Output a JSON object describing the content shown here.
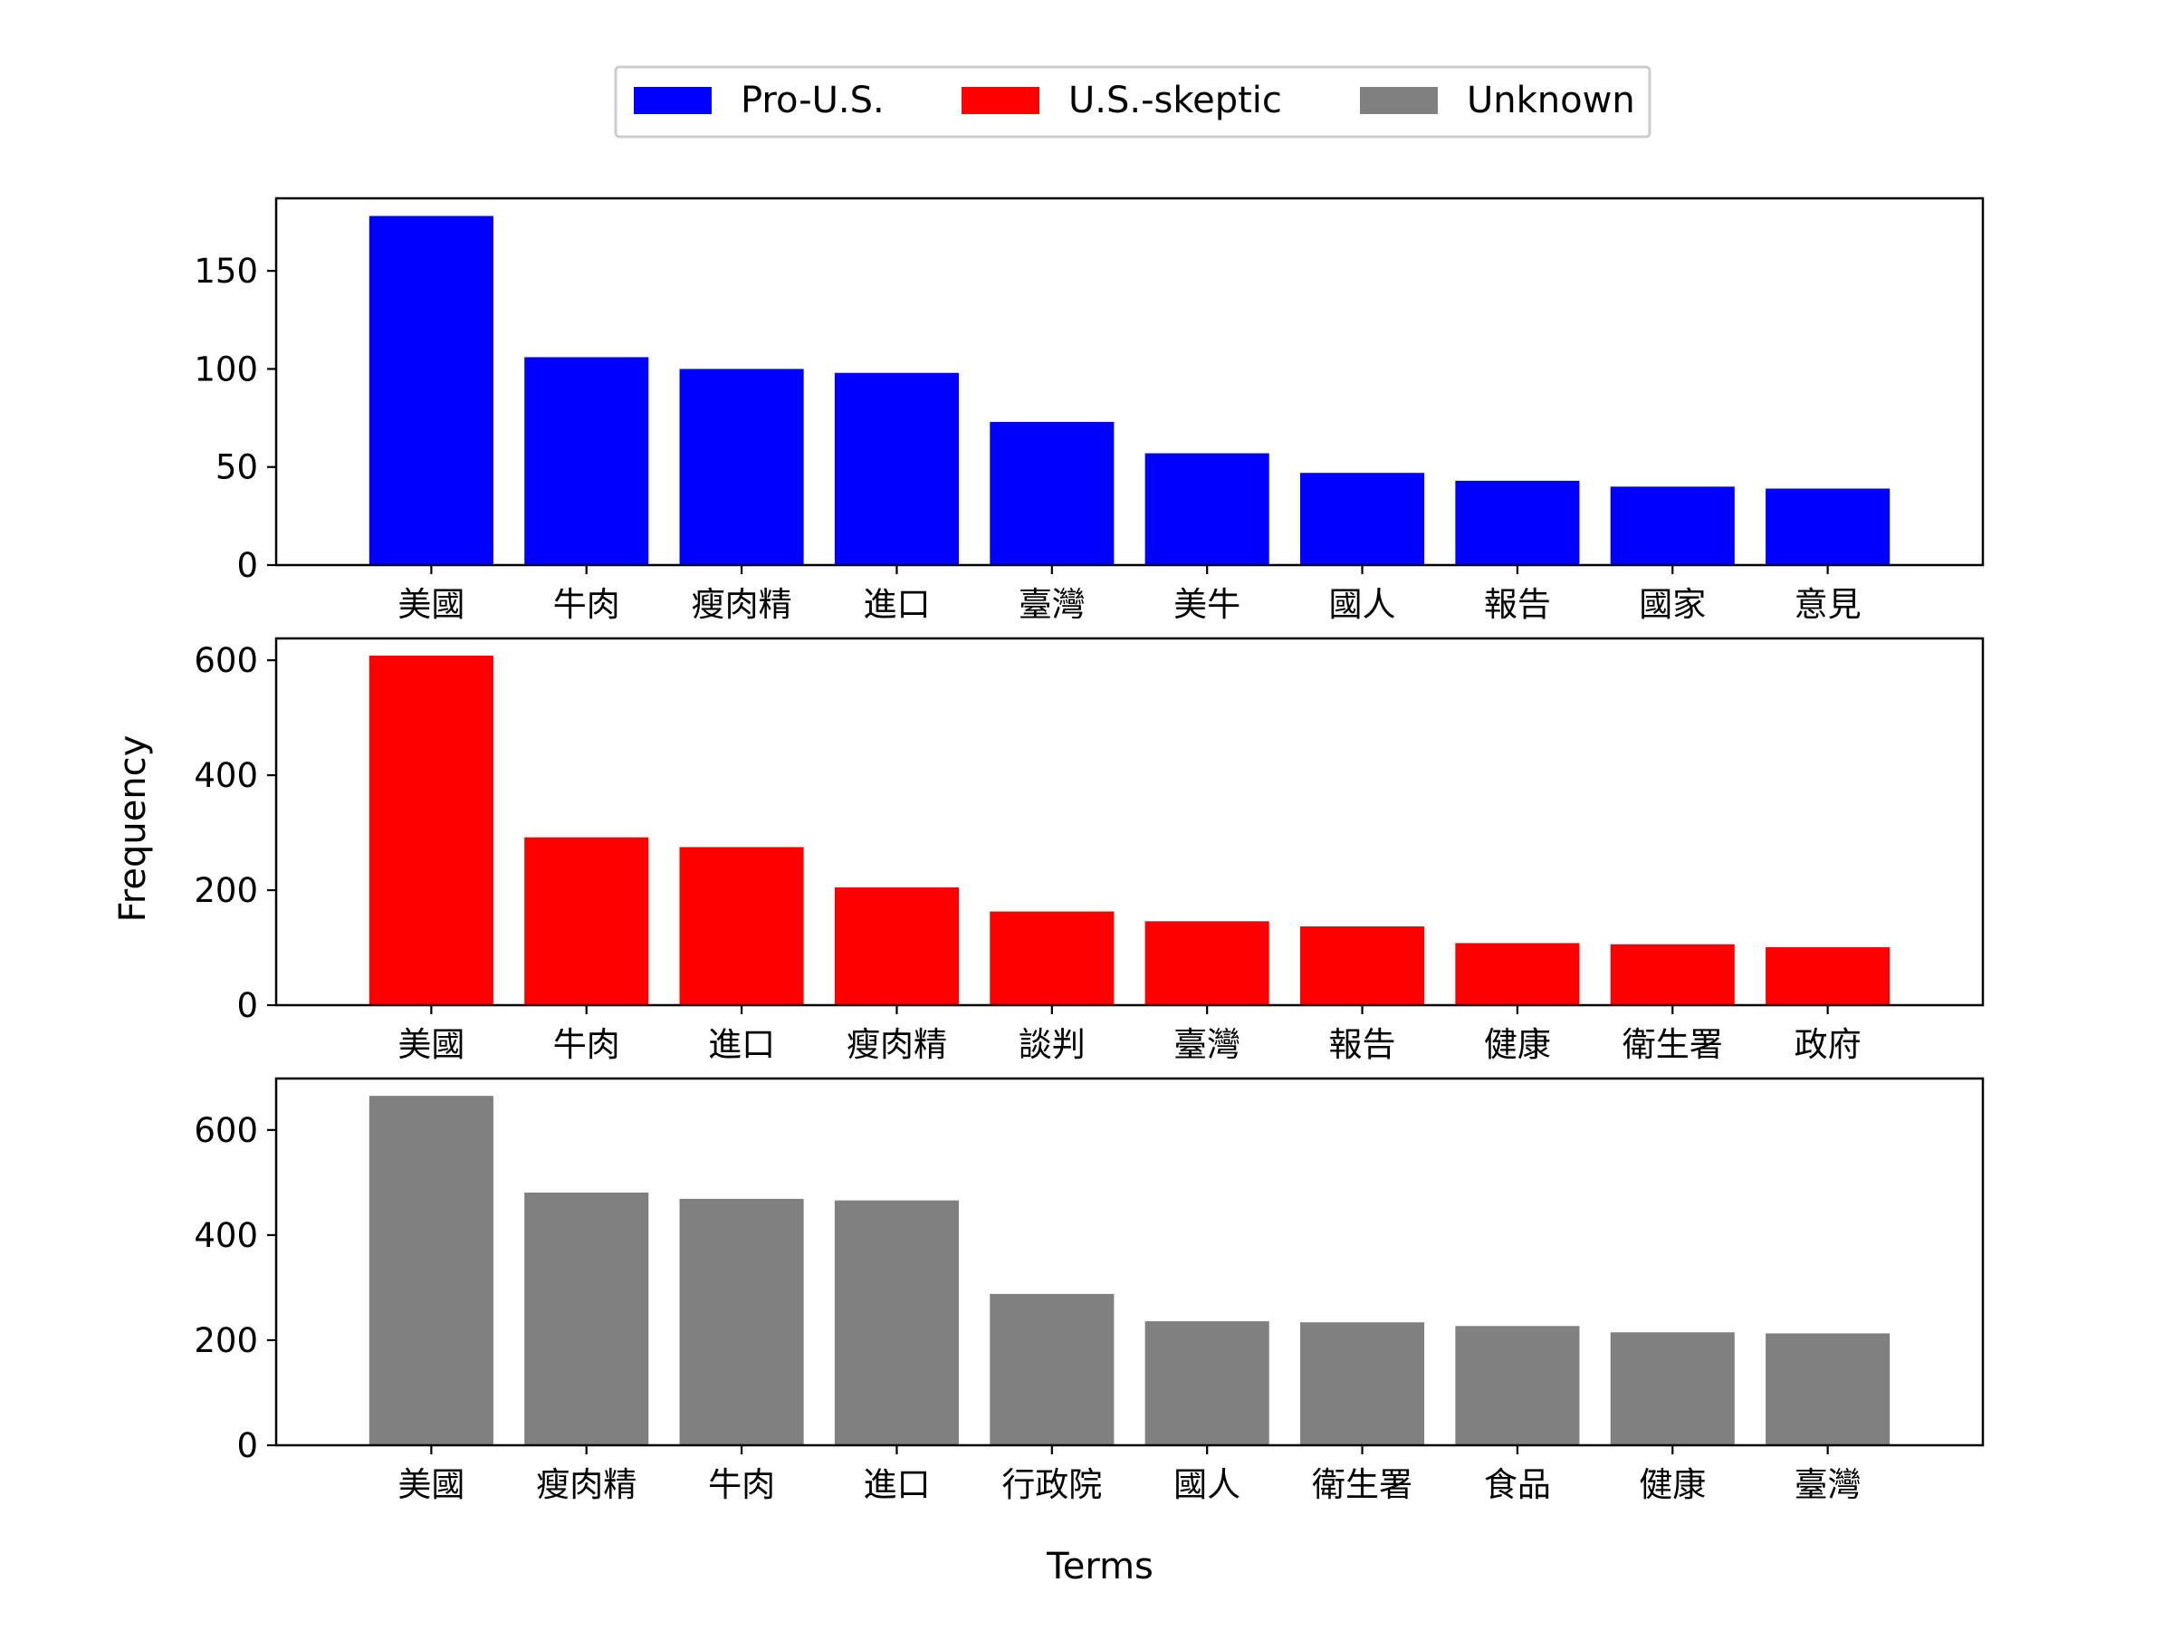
{
  "figure": {
    "ylabel": "Frequency",
    "xlabel": "Terms"
  },
  "legend": {
    "placement": "top-center",
    "entries": [
      {
        "label": "Pro-U.S.",
        "color": "#0000ff"
      },
      {
        "label": "U.S.-skeptic",
        "color": "#ff0000"
      },
      {
        "label": "Unknown",
        "color": "#808080"
      }
    ]
  },
  "chart_data": [
    {
      "type": "bar",
      "series": [
        {
          "name": "Pro-U.S.",
          "color": "#0000ff",
          "values": [
            178,
            106,
            100,
            98,
            73,
            57,
            47,
            43,
            40,
            39
          ]
        }
      ],
      "categories": [
        "美國",
        "牛肉",
        "瘦肉精",
        "進口",
        "臺灣",
        "美牛",
        "國人",
        "報告",
        "國家",
        "意見"
      ],
      "ylim": [
        0,
        187
      ],
      "yticks": [
        0,
        50,
        100,
        150
      ],
      "grid": false
    },
    {
      "type": "bar",
      "series": [
        {
          "name": "U.S.-skeptic",
          "color": "#ff0000",
          "values": [
            608,
            292,
            275,
            205,
            163,
            146,
            137,
            108,
            106,
            101
          ]
        }
      ],
      "categories": [
        "美國",
        "牛肉",
        "進口",
        "瘦肉精",
        "談判",
        "臺灣",
        "報告",
        "健康",
        "衛生署",
        "政府"
      ],
      "ylim": [
        0,
        638
      ],
      "yticks": [
        0,
        200,
        400,
        600
      ],
      "grid": false
    },
    {
      "type": "bar",
      "series": [
        {
          "name": "Unknown",
          "color": "#808080",
          "values": [
            665,
            481,
            469,
            466,
            288,
            236,
            234,
            227,
            215,
            213
          ]
        }
      ],
      "categories": [
        "美國",
        "瘦肉精",
        "牛肉",
        "進口",
        "行政院",
        "國人",
        "衛生署",
        "食品",
        "健康",
        "臺灣"
      ],
      "ylim": [
        0,
        698
      ],
      "yticks": [
        0,
        200,
        400,
        600
      ],
      "grid": false
    }
  ]
}
